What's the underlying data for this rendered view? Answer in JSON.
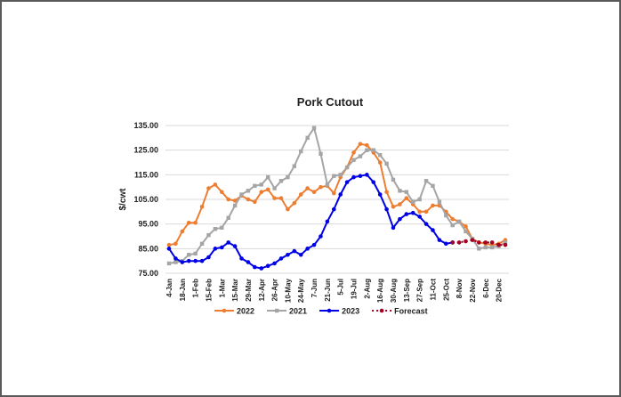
{
  "chart_data": {
    "type": "line",
    "title": "Pork Cutout",
    "y_label": "$/cwt",
    "categories": [
      "4-Jan",
      null,
      "18-Jan",
      null,
      "1-Feb",
      null,
      "15-Feb",
      null,
      "1-Mar",
      null,
      "15-Mar",
      null,
      "29-Mar",
      null,
      "12-Apr",
      null,
      "26-Apr",
      null,
      "10-May",
      null,
      "24-May",
      null,
      "7-Jun",
      null,
      "21-Jun",
      null,
      "5-Jul",
      null,
      "19-Jul",
      null,
      "2-Aug",
      null,
      "16-Aug",
      null,
      "30-Aug",
      null,
      "13-Sep",
      null,
      "27-Sep",
      null,
      "11-Oct",
      null,
      "25-Oct",
      null,
      "8-Nov",
      null,
      "22-Nov",
      null,
      "6-Dec",
      null,
      "20-Dec",
      null
    ],
    "series": [
      {
        "name": "2022",
        "color": "#ed7d31",
        "marker": "circle",
        "dash": false,
        "values": [
          86.5,
          87,
          92,
          95.5,
          95.5,
          102,
          109.5,
          111,
          108,
          105,
          104.5,
          106.5,
          105,
          104,
          108,
          109,
          105.5,
          105.5,
          101,
          103.5,
          107,
          109.5,
          108,
          110,
          110.5,
          107.5,
          114,
          118,
          124,
          127.5,
          127,
          124,
          120,
          108,
          102,
          103,
          105.5,
          103,
          100,
          100,
          102.5,
          102.5,
          100,
          97,
          96,
          94,
          89,
          87.5,
          87,
          86.5,
          87,
          88.5
        ]
      },
      {
        "name": "2021",
        "color": "#a5a5a5",
        "marker": "square",
        "dash": false,
        "values": [
          79,
          79.5,
          80,
          82.5,
          83,
          87,
          90.5,
          93,
          93.5,
          97.5,
          102.5,
          107,
          108.5,
          110.5,
          111,
          114,
          109.5,
          112.5,
          114,
          118.5,
          124.5,
          130,
          134,
          123.5,
          111,
          114.5,
          115,
          118,
          121,
          122.5,
          125,
          125,
          123,
          119.5,
          113,
          108.5,
          108,
          104,
          105,
          112.5,
          110.5,
          104,
          98.5,
          94.5,
          96,
          92,
          89,
          85,
          85.5,
          85.5,
          86,
          87.5
        ]
      },
      {
        "name": "2023",
        "color": "#0000e6",
        "marker": "circle",
        "dash": false,
        "values": [
          85,
          81,
          79.5,
          80,
          80,
          80,
          81.5,
          85,
          85.5,
          87.5,
          86,
          81,
          79.5,
          77.5,
          77,
          78,
          79,
          81,
          82.5,
          84,
          82.5,
          85,
          86.5,
          90,
          96,
          101,
          107,
          112,
          114,
          114.5,
          115,
          112,
          107,
          101,
          93.5,
          97,
          99,
          99.5,
          98,
          95,
          92.5,
          88.5,
          87,
          87.5,
          null,
          null,
          null,
          null,
          null,
          null,
          null,
          null
        ]
      },
      {
        "name": "Forecast",
        "color": "#a50021",
        "marker": "circle",
        "dash": true,
        "values": [
          null,
          null,
          null,
          null,
          null,
          null,
          null,
          null,
          null,
          null,
          null,
          null,
          null,
          null,
          null,
          null,
          null,
          null,
          null,
          null,
          null,
          null,
          null,
          null,
          null,
          null,
          null,
          null,
          null,
          null,
          null,
          null,
          null,
          null,
          null,
          null,
          null,
          null,
          null,
          null,
          null,
          null,
          null,
          87.5,
          87.5,
          88,
          88.5,
          87.5,
          87.5,
          87.5,
          86.5,
          86.5
        ]
      }
    ],
    "ylim": [
      75,
      135
    ],
    "yticks": [
      {
        "value": 75,
        "label": "75.00"
      },
      {
        "value": 85,
        "label": "85.00"
      },
      {
        "value": 95,
        "label": "95.00"
      },
      {
        "value": 105,
        "label": "105.00"
      },
      {
        "value": 115,
        "label": "115.00"
      },
      {
        "value": 125,
        "label": "125.00"
      },
      {
        "value": 135,
        "label": "135.00"
      }
    ],
    "grid": true,
    "legend": "bottom"
  }
}
